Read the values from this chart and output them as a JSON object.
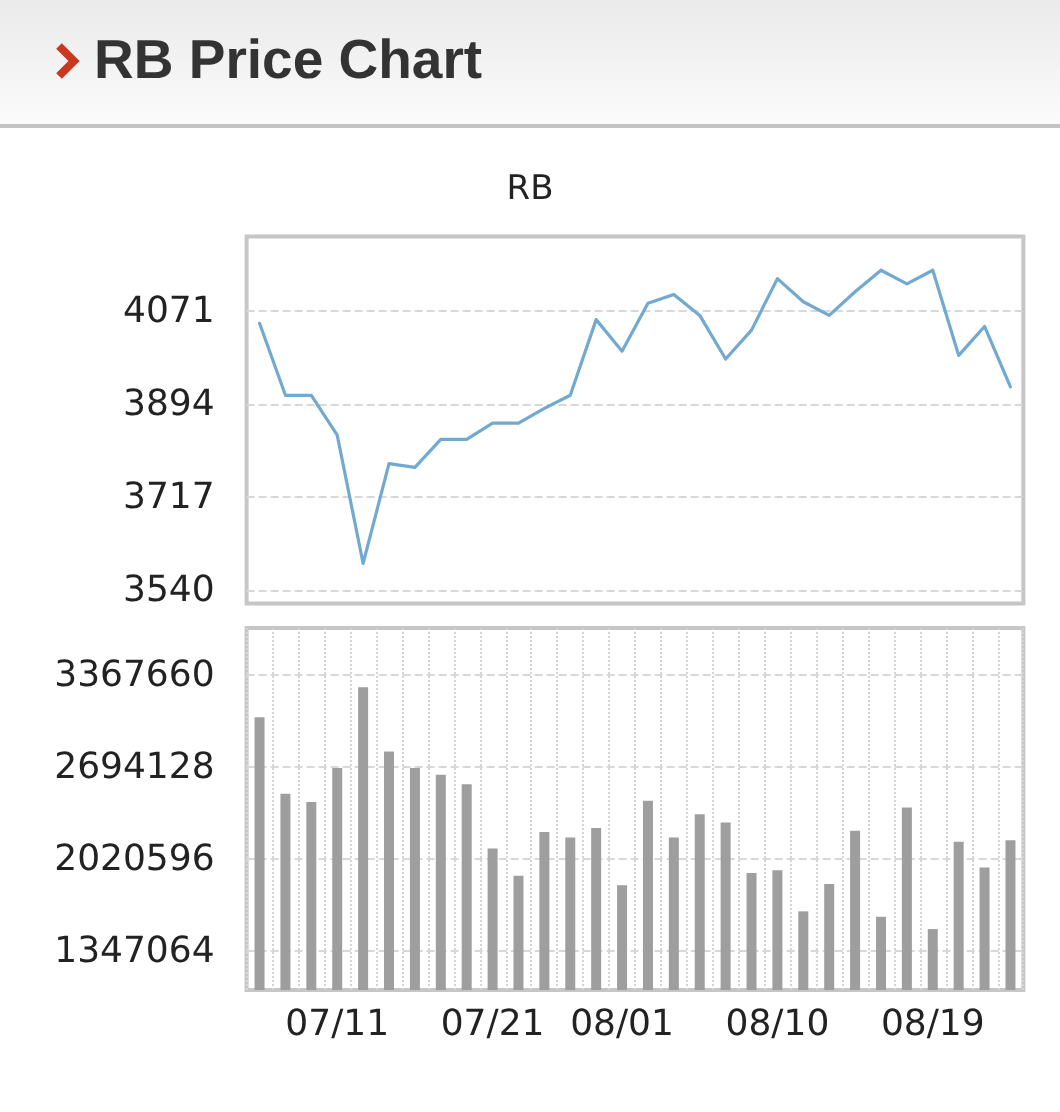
{
  "chart_data": [
    {
      "type": "line",
      "title": "RB Price Chart",
      "subtitle": "RB",
      "categories": [
        null,
        null,
        null,
        null,
        null,
        null,
        null,
        null,
        null,
        null,
        null,
        null,
        null,
        null,
        null,
        null,
        null,
        null,
        null,
        null,
        null,
        null,
        null,
        null,
        null,
        null,
        null,
        null,
        null,
        null
      ],
      "values": [
        4048,
        3911,
        3911,
        3835,
        3591,
        3781,
        3774,
        3827,
        3827,
        3858,
        3858,
        3886,
        3911,
        4055,
        3995,
        4086,
        4103,
        4063,
        3980,
        4035,
        4133,
        4089,
        4063,
        4108,
        4149,
        4123,
        4149,
        3987,
        4042,
        3927
      ],
      "color": "#72a9d1",
      "ylim": [
        3515,
        4213
      ],
      "yticks": [
        3540,
        3717,
        3894,
        4071
      ],
      "grid": "y",
      "marker": "none",
      "tick_labels": "y"
    },
    {
      "type": "bar",
      "categories": [
        null,
        null,
        null,
        "07/11",
        null,
        null,
        null,
        null,
        null,
        "07/21",
        null,
        null,
        null,
        null,
        "08/01",
        null,
        null,
        null,
        null,
        null,
        "08/10",
        null,
        null,
        null,
        null,
        null,
        "08/19",
        null,
        null,
        null
      ],
      "values": [
        3060000,
        2500000,
        2440000,
        2690000,
        3280000,
        2810000,
        2690000,
        2640000,
        2570000,
        2100000,
        1900000,
        2220000,
        2180000,
        2250000,
        1830000,
        2450000,
        2180000,
        2350000,
        2290000,
        1920000,
        1940000,
        1640000,
        1840000,
        2230000,
        1600000,
        2400000,
        1510000,
        2150000,
        1960000,
        2160000
      ],
      "color": "#9e9e9e",
      "ylim": [
        1064000,
        3714000
      ],
      "yticks": [
        1347064,
        2020596,
        2694128,
        3367660
      ],
      "grid": true
    }
  ]
}
